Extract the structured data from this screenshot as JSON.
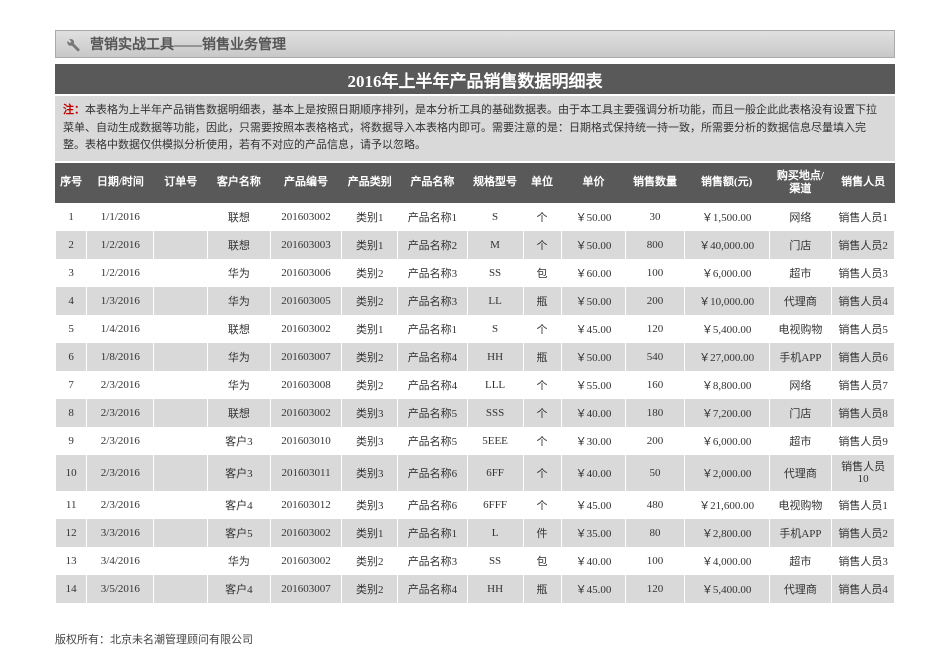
{
  "banner": {
    "text": "营销实战工具——销售业务管理"
  },
  "title": "2016年上半年产品销售数据明细表",
  "note_prefix": "注：",
  "note": "本表格为上半年产品销售数据明细表，基本上是按照日期顺序排列，是本分析工具的基础数据表。由于本工具主要强调分析功能，而且一般企此此表格没有设置下拉菜单、自动生成数据等功能，因此，只需要按照本表格格式，将数据导入本表格内即可。需要注意的是：日期格式保持统一持一致，所需要分析的数据信息尽量填入完整。表格中数据仅供模拟分析使用，若有不对应的产品信息，请予以忽略。",
  "columns": [
    "序号",
    "日期/时间",
    "订单号",
    "客户名称",
    "产品编号",
    "产品类别",
    "产品名称",
    "规格型号",
    "单位",
    "单价",
    "销售数量",
    "销售额(元)",
    "购买地点/渠道",
    "销售人员"
  ],
  "rows": [
    {
      "idx": "1",
      "date": "1/1/2016",
      "order": "",
      "cust": "联想",
      "pcode": "201603002",
      "cat": "类别1",
      "pname": "产品名称1",
      "spec": "S",
      "unit": "个",
      "price": "￥50.00",
      "qty": "30",
      "amount": "￥1,500.00",
      "channel": "网络",
      "sales": "销售人员1"
    },
    {
      "idx": "2",
      "date": "1/2/2016",
      "order": "",
      "cust": "联想",
      "pcode": "201603003",
      "cat": "类别1",
      "pname": "产品名称2",
      "spec": "M",
      "unit": "个",
      "price": "￥50.00",
      "qty": "800",
      "amount": "￥40,000.00",
      "channel": "门店",
      "sales": "销售人员2"
    },
    {
      "idx": "3",
      "date": "1/2/2016",
      "order": "",
      "cust": "华为",
      "pcode": "201603006",
      "cat": "类别2",
      "pname": "产品名称3",
      "spec": "SS",
      "unit": "包",
      "price": "￥60.00",
      "qty": "100",
      "amount": "￥6,000.00",
      "channel": "超市",
      "sales": "销售人员3"
    },
    {
      "idx": "4",
      "date": "1/3/2016",
      "order": "",
      "cust": "华为",
      "pcode": "201603005",
      "cat": "类别2",
      "pname": "产品名称3",
      "spec": "LL",
      "unit": "瓶",
      "price": "￥50.00",
      "qty": "200",
      "amount": "￥10,000.00",
      "channel": "代理商",
      "sales": "销售人员4"
    },
    {
      "idx": "5",
      "date": "1/4/2016",
      "order": "",
      "cust": "联想",
      "pcode": "201603002",
      "cat": "类别1",
      "pname": "产品名称1",
      "spec": "S",
      "unit": "个",
      "price": "￥45.00",
      "qty": "120",
      "amount": "￥5,400.00",
      "channel": "电视购物",
      "sales": "销售人员5"
    },
    {
      "idx": "6",
      "date": "1/8/2016",
      "order": "",
      "cust": "华为",
      "pcode": "201603007",
      "cat": "类别2",
      "pname": "产品名称4",
      "spec": "HH",
      "unit": "瓶",
      "price": "￥50.00",
      "qty": "540",
      "amount": "￥27,000.00",
      "channel": "手机APP",
      "sales": "销售人员6"
    },
    {
      "idx": "7",
      "date": "2/3/2016",
      "order": "",
      "cust": "华为",
      "pcode": "201603008",
      "cat": "类别2",
      "pname": "产品名称4",
      "spec": "LLL",
      "unit": "个",
      "price": "￥55.00",
      "qty": "160",
      "amount": "￥8,800.00",
      "channel": "网络",
      "sales": "销售人员7"
    },
    {
      "idx": "8",
      "date": "2/3/2016",
      "order": "",
      "cust": "联想",
      "pcode": "201603002",
      "cat": "类别3",
      "pname": "产品名称5",
      "spec": "SSS",
      "unit": "个",
      "price": "￥40.00",
      "qty": "180",
      "amount": "￥7,200.00",
      "channel": "门店",
      "sales": "销售人员8"
    },
    {
      "idx": "9",
      "date": "2/3/2016",
      "order": "",
      "cust": "客户3",
      "pcode": "201603010",
      "cat": "类别3",
      "pname": "产品名称5",
      "spec": "5EEE",
      "unit": "个",
      "price": "￥30.00",
      "qty": "200",
      "amount": "￥6,000.00",
      "channel": "超市",
      "sales": "销售人员9"
    },
    {
      "idx": "10",
      "date": "2/3/2016",
      "order": "",
      "cust": "客户3",
      "pcode": "201603011",
      "cat": "类别3",
      "pname": "产品名称6",
      "spec": "6FF",
      "unit": "个",
      "price": "￥40.00",
      "qty": "50",
      "amount": "￥2,000.00",
      "channel": "代理商",
      "sales": "销售人员10"
    },
    {
      "idx": "11",
      "date": "2/3/2016",
      "order": "",
      "cust": "客户4",
      "pcode": "201603012",
      "cat": "类别3",
      "pname": "产品名称6",
      "spec": "6FFF",
      "unit": "个",
      "price": "￥45.00",
      "qty": "480",
      "amount": "￥21,600.00",
      "channel": "电视购物",
      "sales": "销售人员1"
    },
    {
      "idx": "12",
      "date": "3/3/2016",
      "order": "",
      "cust": "客户5",
      "pcode": "201603002",
      "cat": "类别1",
      "pname": "产品名称1",
      "spec": "L",
      "unit": "件",
      "price": "￥35.00",
      "qty": "80",
      "amount": "￥2,800.00",
      "channel": "手机APP",
      "sales": "销售人员2"
    },
    {
      "idx": "13",
      "date": "3/4/2016",
      "order": "",
      "cust": "华为",
      "pcode": "201603002",
      "cat": "类别2",
      "pname": "产品名称3",
      "spec": "SS",
      "unit": "包",
      "price": "￥40.00",
      "qty": "100",
      "amount": "￥4,000.00",
      "channel": "超市",
      "sales": "销售人员3"
    },
    {
      "idx": "14",
      "date": "3/5/2016",
      "order": "",
      "cust": "客户4",
      "pcode": "201603007",
      "cat": "类别2",
      "pname": "产品名称4",
      "spec": "HH",
      "unit": "瓶",
      "price": "￥45.00",
      "qty": "120",
      "amount": "￥5,400.00",
      "channel": "代理商",
      "sales": "销售人员4"
    }
  ],
  "footer": "版权所有：北京未名潮管理顾问有限公司",
  "col_classes": [
    "col-idx",
    "col-date",
    "col-order",
    "col-cust",
    "col-pcode",
    "col-cat",
    "col-pname",
    "col-spec",
    "col-unit",
    "col-price",
    "col-qty",
    "col-amount",
    "col-channel",
    "col-sales"
  ]
}
